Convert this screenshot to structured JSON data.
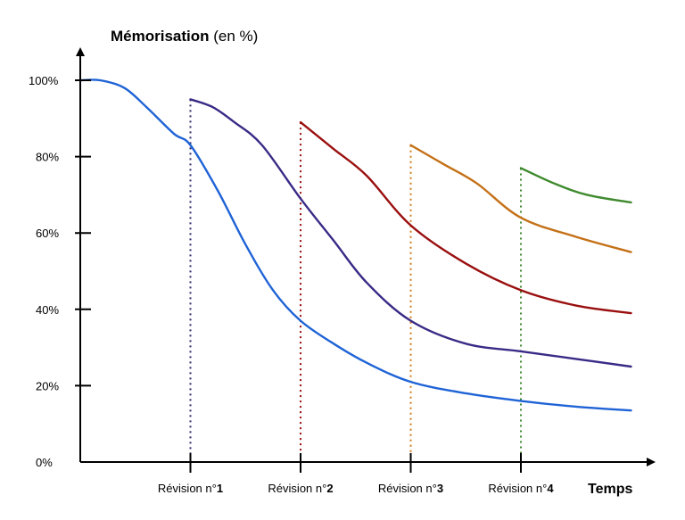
{
  "chart_data": {
    "type": "line",
    "ylabel_bold": "Mémorisation",
    "ylabel_rest": " (en %)",
    "xlabel": "Temps",
    "ylim": [
      0,
      100
    ],
    "yticks": [
      {
        "value": 0,
        "label": "0%"
      },
      {
        "value": 20,
        "label": "20%"
      },
      {
        "value": 40,
        "label": "40%"
      },
      {
        "value": 60,
        "label": "60%"
      },
      {
        "value": 80,
        "label": "80%"
      },
      {
        "value": 100,
        "label": "100%"
      }
    ],
    "xlim": [
      0,
      6
    ],
    "revisions": [
      {
        "x": 1,
        "prefix": "Révision n°",
        "num": "1",
        "color": "#2e2a6e",
        "start": 95
      },
      {
        "x": 2,
        "prefix": "Révision n°",
        "num": "2",
        "color": "#9a0f0f",
        "start": 89
      },
      {
        "x": 3,
        "prefix": "Révision n°",
        "num": "3",
        "color": "#d07c1a",
        "start": 83
      },
      {
        "x": 4,
        "prefix": "Révision n°",
        "num": "4",
        "color": "#3f8a2e",
        "start": 77
      }
    ],
    "series": [
      {
        "color": "#1f63d6",
        "points": [
          [
            0,
            100
          ],
          [
            0.18,
            100
          ],
          [
            0.4,
            98
          ],
          [
            0.6,
            93
          ],
          [
            0.85,
            86
          ],
          [
            1,
            83
          ],
          [
            1.25,
            71
          ],
          [
            1.5,
            57
          ],
          [
            1.75,
            45
          ],
          [
            2,
            37
          ],
          [
            2.3,
            31
          ],
          [
            2.6,
            26
          ],
          [
            3,
            21
          ],
          [
            3.5,
            18
          ],
          [
            4,
            16
          ],
          [
            4.5,
            14.5
          ],
          [
            5,
            13.5
          ]
        ]
      },
      {
        "color": "#3a2a86",
        "points": [
          [
            1,
            95
          ],
          [
            1.2,
            93
          ],
          [
            1.4,
            89
          ],
          [
            1.65,
            83
          ],
          [
            2,
            69
          ],
          [
            2.3,
            58
          ],
          [
            2.6,
            47
          ],
          [
            3,
            37
          ],
          [
            3.5,
            31
          ],
          [
            4,
            29
          ],
          [
            4.5,
            27
          ],
          [
            5,
            25
          ]
        ]
      },
      {
        "color": "#9a0f0f",
        "points": [
          [
            2,
            89
          ],
          [
            2.3,
            82
          ],
          [
            2.6,
            75
          ],
          [
            3,
            62
          ],
          [
            3.5,
            52
          ],
          [
            4,
            45
          ],
          [
            4.5,
            41
          ],
          [
            5,
            39
          ]
        ]
      },
      {
        "color": "#c47016",
        "points": [
          [
            3,
            83
          ],
          [
            3.3,
            78
          ],
          [
            3.6,
            73
          ],
          [
            4,
            64
          ],
          [
            4.5,
            59
          ],
          [
            5,
            55
          ]
        ]
      },
      {
        "color": "#3f8a2e",
        "points": [
          [
            4,
            77
          ],
          [
            4.3,
            73
          ],
          [
            4.6,
            70
          ],
          [
            5,
            68
          ]
        ]
      }
    ]
  }
}
